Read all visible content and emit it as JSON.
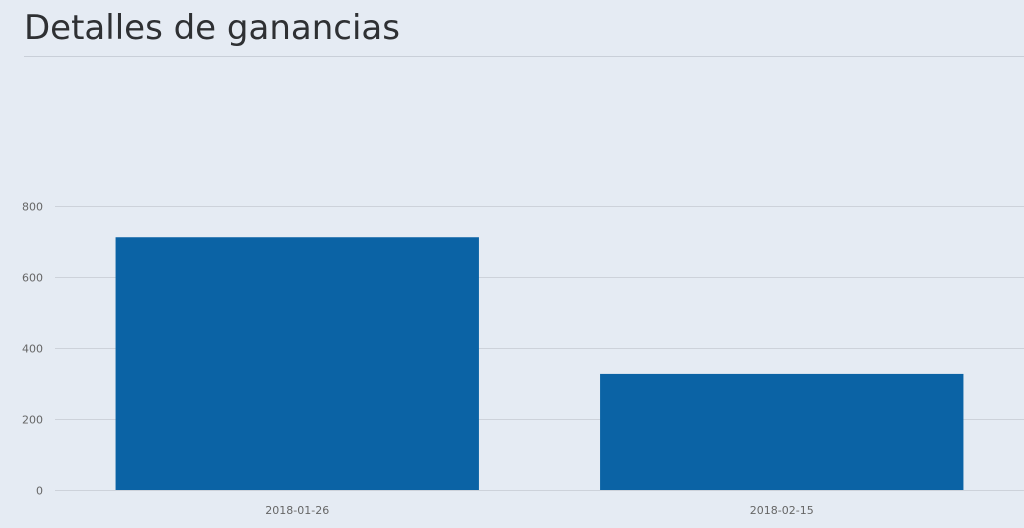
{
  "header": {
    "title": "Detalles de ganancias"
  },
  "colors": {
    "background": "#e5ebf3",
    "bar": "#0b63a5",
    "grid": "#cdd2da",
    "axis_text": "#666666"
  },
  "chart_data": {
    "type": "bar",
    "categories": [
      "2018-01-26",
      "2018-02-15"
    ],
    "values": [
      712,
      327
    ],
    "yticks": [
      0,
      200,
      400,
      600,
      800
    ],
    "ylim": [
      0,
      800
    ],
    "grid": true
  }
}
